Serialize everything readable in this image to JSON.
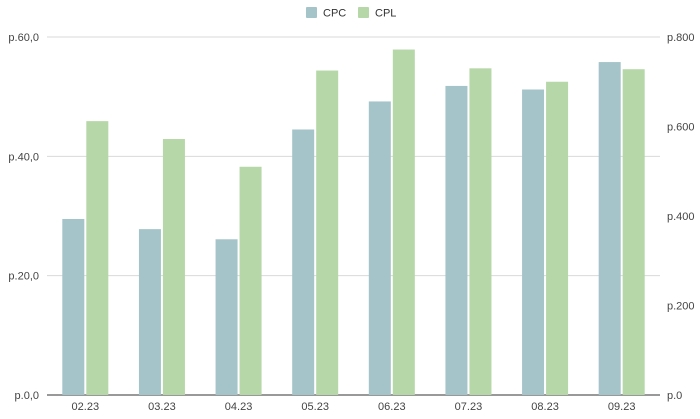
{
  "chart_data": {
    "type": "bar",
    "categories": [
      "02.23",
      "03.23",
      "04.23",
      "05.23",
      "06.23",
      "07.23",
      "08.23",
      "09.23"
    ],
    "series": [
      {
        "name": "CPC",
        "axis": "left",
        "color": "#a5c4c9",
        "values": [
          29.5,
          27.8,
          26.1,
          44.5,
          49.2,
          51.8,
          51.2,
          55.8
        ]
      },
      {
        "name": "CPL",
        "axis": "right",
        "color": "#b6d7a8",
        "values": [
          612,
          572,
          510,
          725,
          772,
          730,
          700,
          728
        ]
      }
    ],
    "y_left": {
      "ylim": [
        0,
        60
      ],
      "ticks": [
        0,
        20,
        40,
        60
      ],
      "tick_labels": [
        "р.0,0",
        "р.20,0",
        "р.40,0",
        "р.60,0"
      ]
    },
    "y_right": {
      "ylim": [
        0,
        800
      ],
      "ticks": [
        0,
        200,
        400,
        600,
        800
      ],
      "tick_labels": [
        "р.0",
        "р.200",
        "р.400",
        "р.600",
        "р.800"
      ]
    },
    "legend": {
      "placement": "top-center",
      "entries": [
        "CPC",
        "CPL"
      ]
    },
    "grid": true,
    "title": "",
    "xlabel": "",
    "ylabel": ""
  }
}
